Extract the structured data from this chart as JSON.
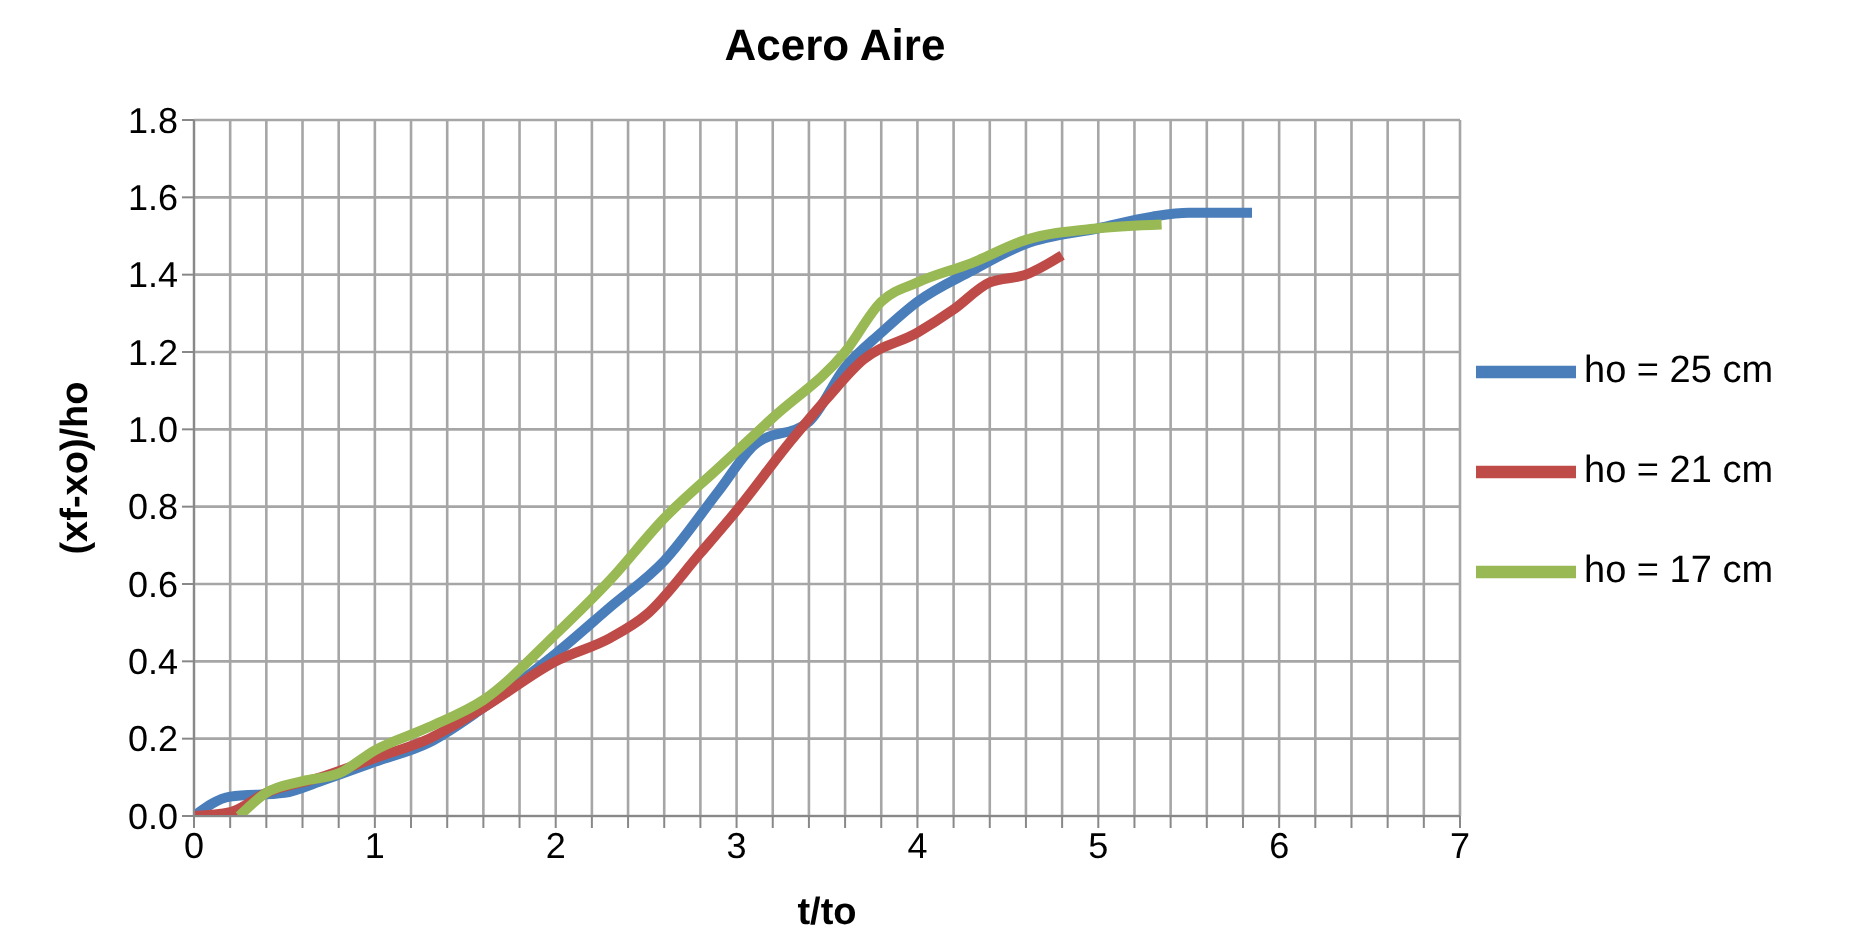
{
  "chart_data": {
    "type": "line",
    "title": "Acero Aire",
    "xlabel": "t/to",
    "ylabel": "(xf-xo)/ho",
    "xlim": [
      0,
      7
    ],
    "xticks": [
      0,
      {
        "value": 0.2,
        "label": null
      },
      {
        "value": 0.4,
        "label": null
      },
      {
        "value": 0.6,
        "label": null
      },
      {
        "value": 0.8,
        "label": null
      },
      1,
      {
        "value": 1.2,
        "label": null
      },
      {
        "value": 1.4,
        "label": null
      },
      {
        "value": 1.6,
        "label": null
      },
      {
        "value": 1.8,
        "label": null
      },
      2,
      {
        "value": 2.2,
        "label": null
      },
      {
        "value": 2.4,
        "label": null
      },
      {
        "value": 2.6,
        "label": null
      },
      {
        "value": 2.8,
        "label": null
      },
      3,
      {
        "value": 3.2,
        "label": null
      },
      {
        "value": 3.4,
        "label": null
      },
      {
        "value": 3.6,
        "label": null
      },
      {
        "value": 3.8,
        "label": null
      },
      4,
      {
        "value": 4.2,
        "label": null
      },
      {
        "value": 4.4,
        "label": null
      },
      {
        "value": 4.6,
        "label": null
      },
      {
        "value": 4.8,
        "label": null
      },
      5,
      {
        "value": 5.2,
        "label": null
      },
      {
        "value": 5.4,
        "label": null
      },
      {
        "value": 5.6,
        "label": null
      },
      {
        "value": 5.8,
        "label": null
      },
      6,
      {
        "value": 6.2,
        "label": null
      },
      {
        "value": 6.4,
        "label": null
      },
      {
        "value": 6.6,
        "label": null
      },
      {
        "value": 6.8,
        "label": null
      },
      7
    ],
    "ylim": [
      0,
      1.8
    ],
    "yticks": [
      {
        "value": 0,
        "label": "0.0"
      },
      {
        "value": 0.2,
        "label": "0.2"
      },
      {
        "value": 0.4,
        "label": "0.4"
      },
      {
        "value": 0.6,
        "label": "0.6"
      },
      {
        "value": 0.8,
        "label": "0.8"
      },
      {
        "value": 1,
        "label": "1.0"
      },
      {
        "value": 1.2,
        "label": "1.2"
      },
      {
        "value": 1.4,
        "label": "1.4"
      },
      {
        "value": 1.6,
        "label": "1.6"
      },
      {
        "value": 1.8,
        "label": "1.8"
      }
    ],
    "grid": true,
    "legend": "right",
    "marker": "none",
    "line_style": "solid",
    "series": [
      {
        "name": "ho = 25 cm",
        "color": "#4a7ebb",
        "x": [
          0,
          0.2,
          0.5,
          0.7,
          1,
          1.3,
          1.6,
          2,
          2.3,
          2.6,
          2.9,
          3.1,
          3.4,
          3.6,
          3.8,
          4,
          4.3,
          4.6,
          5,
          5.3,
          5.5,
          5.85
        ],
        "values": [
          0,
          0.05,
          0.06,
          0.09,
          0.14,
          0.19,
          0.28,
          0.42,
          0.54,
          0.66,
          0.84,
          0.96,
          1.02,
          1.16,
          1.25,
          1.33,
          1.41,
          1.48,
          1.52,
          1.55,
          1.56,
          1.56
        ]
      },
      {
        "name": "ho = 21 cm",
        "color": "#be4b48",
        "x": [
          0,
          0.2,
          0.4,
          0.7,
          1,
          1.3,
          1.6,
          2,
          2.3,
          2.5,
          2.8,
          3,
          3.3,
          3.5,
          3.7,
          4,
          4.2,
          4.4,
          4.6,
          4.8
        ],
        "values": [
          0,
          0.01,
          0.06,
          0.1,
          0.15,
          0.2,
          0.28,
          0.4,
          0.46,
          0.52,
          0.68,
          0.79,
          0.97,
          1.08,
          1.18,
          1.25,
          1.31,
          1.38,
          1.4,
          1.45
        ]
      },
      {
        "name": "ho = 17 cm",
        "color": "#98b954",
        "x": [
          0.25,
          0.4,
          0.6,
          0.8,
          1,
          1.3,
          1.6,
          2,
          2.3,
          2.6,
          2.9,
          3.2,
          3.6,
          3.8,
          4,
          4.3,
          4.6,
          5,
          5.35
        ],
        "values": [
          0,
          0.06,
          0.09,
          0.11,
          0.17,
          0.23,
          0.3,
          0.47,
          0.61,
          0.77,
          0.9,
          1.03,
          1.2,
          1.33,
          1.38,
          1.43,
          1.49,
          1.52,
          1.53
        ]
      }
    ]
  }
}
